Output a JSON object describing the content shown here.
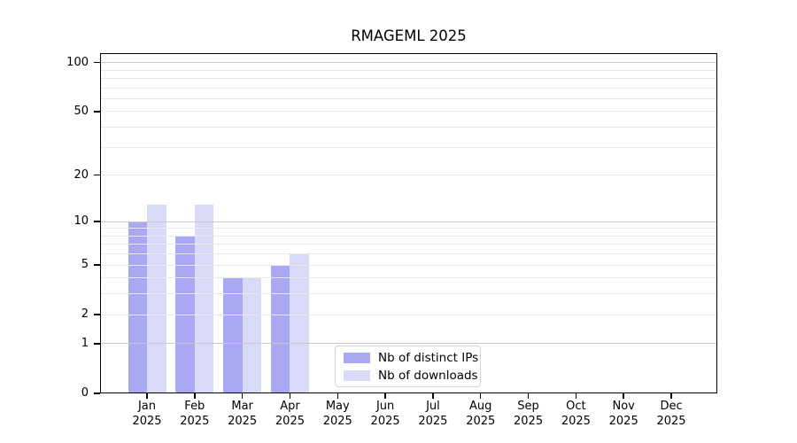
{
  "chart_data": {
    "type": "bar",
    "title": "RMAGEML 2025",
    "categories": [
      "Jan 2025",
      "Feb 2025",
      "Mar 2025",
      "Apr 2025",
      "May 2025",
      "Jun 2025",
      "Jul 2025",
      "Aug 2025",
      "Sep 2025",
      "Oct 2025",
      "Nov 2025",
      "Dec 2025"
    ],
    "series": [
      {
        "name": "Nb of distinct IPs",
        "color": "#a9a9f3",
        "values": [
          10,
          8,
          4,
          5,
          0,
          0,
          0,
          0,
          0,
          0,
          0,
          0
        ]
      },
      {
        "name": "Nb of downloads",
        "color": "#d9d9f8",
        "values": [
          13,
          13,
          4,
          6,
          0,
          0,
          0,
          0,
          0,
          0,
          0,
          0
        ]
      }
    ],
    "xlabel": "",
    "ylabel": "",
    "yscale": "log1p",
    "ylim": [
      0,
      114
    ],
    "y_tick_values": [
      0,
      1,
      2,
      5,
      10,
      20,
      50,
      100
    ],
    "y_major_gridlines": [
      1,
      10,
      100
    ],
    "y_minor_gridlines": [
      2,
      3,
      4,
      5,
      6,
      7,
      8,
      9,
      20,
      30,
      40,
      50,
      60,
      70,
      80,
      90
    ],
    "grid": "horizontal, drawn above bars",
    "legend_position": "inside lower middle"
  },
  "colors": {
    "background": "#ffffff",
    "axis": "#000000",
    "text": "#000000",
    "major_grid": "#c9c9c9",
    "minor_grid": "#e9e9e9",
    "legend_border": "#d4d4d4"
  }
}
